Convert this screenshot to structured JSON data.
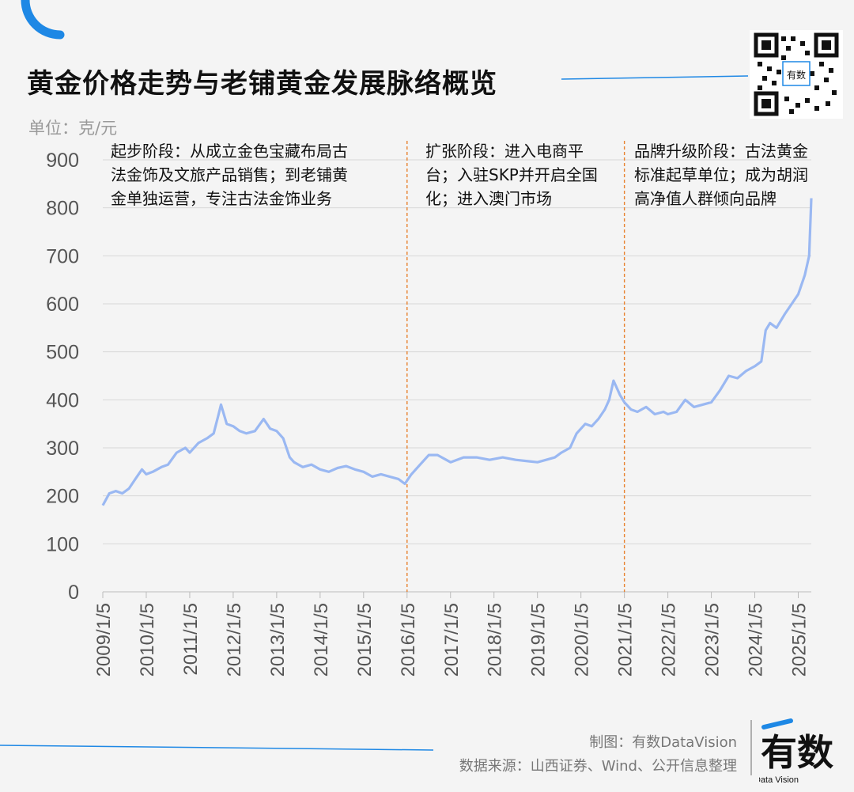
{
  "header": {
    "title": "黄金价格走势与老铺黄金发展脉络概览",
    "unit": "单位：克/元"
  },
  "footer": {
    "credit": "制图：有数DataVision",
    "source": "数据来源：山西证券、Wind、公开信息整理",
    "logo_text_main": "有数",
    "logo_text_sub": "Data Vision"
  },
  "qr": {
    "badge": "有数"
  },
  "colors": {
    "accent": "#1e88e5",
    "line": "#9ab8f2",
    "divider": "#e8822f",
    "grid": "#d8d8d8"
  },
  "chart_data": {
    "type": "line",
    "title": "黄金价格走势与老铺黄金发展脉络概览",
    "ylabel": "单位：克/元",
    "ylim": [
      0,
      900
    ],
    "yticks": [
      "0",
      "100",
      "200",
      "300",
      "400",
      "500",
      "600",
      "700",
      "800",
      "900"
    ],
    "xticks": [
      "2009/1/5",
      "2010/1/5",
      "2011/1/5",
      "2012/1/5",
      "2013/1/5",
      "2014/1/5",
      "2015/1/5",
      "2016/1/5",
      "2017/1/5",
      "2018/1/5",
      "2019/1/5",
      "2020/1/5",
      "2021/1/5",
      "2022/1/5",
      "2023/1/5",
      "2024/1/5",
      "2025/1/5"
    ],
    "grid": true,
    "series": [
      {
        "x": [
          2009.0,
          2009.15,
          2009.3,
          2009.45,
          2009.6,
          2009.75,
          2009.9,
          2010.0,
          2010.15,
          2010.35,
          2010.5,
          2010.7,
          2010.9,
          2011.0,
          2011.2,
          2011.4,
          2011.55,
          2011.65,
          2011.72,
          2011.85,
          2012.0,
          2012.15,
          2012.3,
          2012.5,
          2012.7,
          2012.85,
          2013.0,
          2013.15,
          2013.3,
          2013.4,
          2013.6,
          2013.8,
          2014.0,
          2014.2,
          2014.4,
          2014.6,
          2014.8,
          2015.0,
          2015.2,
          2015.4,
          2015.6,
          2015.8,
          2015.95,
          2016.1,
          2016.3,
          2016.5,
          2016.7,
          2016.9,
          2017.0,
          2017.3,
          2017.6,
          2017.9,
          2018.2,
          2018.5,
          2018.8,
          2019.0,
          2019.2,
          2019.4,
          2019.55,
          2019.75,
          2019.9,
          2020.1,
          2020.25,
          2020.4,
          2020.55,
          2020.65,
          2020.75,
          2020.9,
          2021.0,
          2021.15,
          2021.3,
          2021.5,
          2021.7,
          2021.9,
          2022.0,
          2022.2,
          2022.4,
          2022.6,
          2022.8,
          2023.0,
          2023.2,
          2023.4,
          2023.6,
          2023.8,
          2024.0,
          2024.15,
          2024.25,
          2024.35,
          2024.5,
          2024.7,
          2024.85,
          2025.0,
          2025.15,
          2025.25,
          2025.3
        ],
        "values": [
          180,
          205,
          210,
          205,
          215,
          235,
          255,
          245,
          250,
          260,
          265,
          290,
          300,
          290,
          310,
          320,
          330,
          365,
          390,
          350,
          345,
          335,
          330,
          335,
          360,
          340,
          335,
          320,
          280,
          270,
          260,
          265,
          255,
          250,
          258,
          262,
          255,
          250,
          240,
          245,
          240,
          235,
          225,
          245,
          265,
          285,
          285,
          275,
          270,
          280,
          280,
          275,
          280,
          275,
          272,
          270,
          275,
          280,
          290,
          300,
          330,
          350,
          345,
          360,
          380,
          400,
          440,
          410,
          395,
          380,
          375,
          385,
          370,
          375,
          370,
          375,
          400,
          385,
          390,
          395,
          420,
          450,
          445,
          460,
          470,
          480,
          545,
          560,
          550,
          580,
          600,
          620,
          660,
          700,
          820
        ]
      }
    ],
    "dividers": [
      2016.0,
      2021.0
    ],
    "annotations": [
      {
        "lines": [
          "起步阶段：从成立金色宝藏布局古",
          "法金饰及文旅产品销售；到老铺黄",
          "金单独运营，专注古法金饰业务"
        ]
      },
      {
        "lines": [
          "扩张阶段：进入电商平",
          "台；入驻SKP并开启全国",
          "化；进入澳门市场"
        ]
      },
      {
        "lines": [
          "品牌升级阶段：古法黄金",
          "标准起草单位；成为胡润",
          "高净值人群倾向品牌"
        ]
      }
    ]
  }
}
